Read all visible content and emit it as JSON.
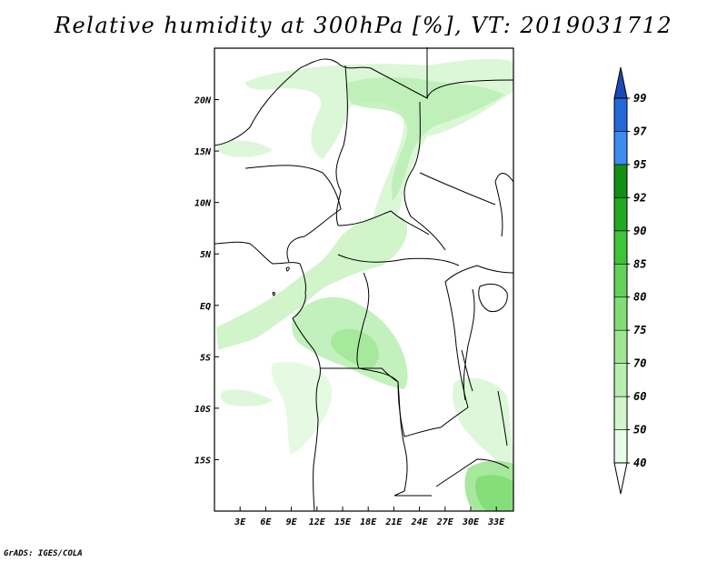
{
  "title": "Relative humidity at 300hPa [%], VT: 2019031712",
  "credit": "GrADS: IGES/COLA",
  "map": {
    "lon_range": [
      0,
      35
    ],
    "lat_range": [
      -20,
      25
    ],
    "lon_ticks": [
      "3E",
      "6E",
      "9E",
      "12E",
      "15E",
      "18E",
      "21E",
      "24E",
      "27E",
      "30E",
      "33E"
    ],
    "lon_tick_values": [
      3,
      6,
      9,
      12,
      15,
      18,
      21,
      24,
      27,
      30,
      33
    ],
    "lat_ticks": [
      "20N",
      "15N",
      "10N",
      "5N",
      "EQ",
      "5S",
      "10S",
      "15S"
    ],
    "lat_tick_values": [
      20,
      15,
      10,
      5,
      0,
      -5,
      -10,
      -15
    ]
  },
  "colorbar": {
    "levels": [
      "40",
      "50",
      "60",
      "70",
      "75",
      "80",
      "85",
      "90",
      "92",
      "95",
      "97",
      "99"
    ],
    "colors": [
      "#ffffff",
      "#e8fbe6",
      "#d2f5cc",
      "#b9eeb1",
      "#9fe693",
      "#82dd76",
      "#63d25a",
      "#3fc43a",
      "#22a822",
      "#128f14",
      "#3d8df0",
      "#2468d8",
      "#1c49b8"
    ]
  }
}
